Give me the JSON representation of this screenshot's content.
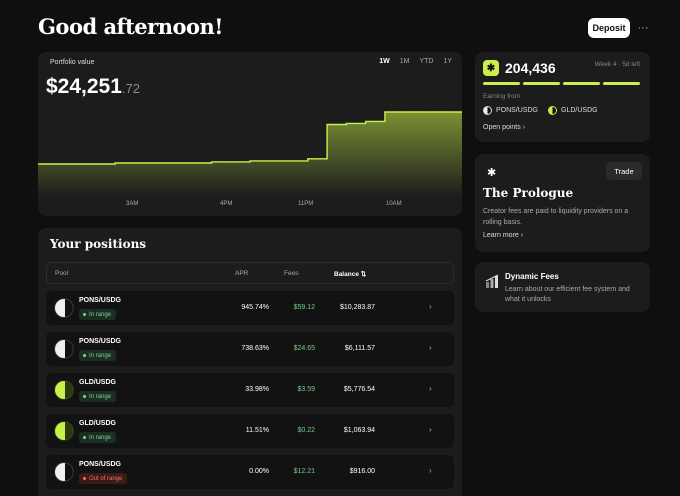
{
  "header": {
    "title": "Good afternoon!",
    "deposit_label": "Deposit",
    "more_label": "···"
  },
  "portfolio": {
    "label": "Portfolio value",
    "value_main": "$24,251",
    "value_cents": ".72",
    "ranges": [
      "1W",
      "1M",
      "YTD",
      "1Y"
    ],
    "active_range": "1W",
    "x_ticks": [
      "3AM",
      "4PM",
      "11PM",
      "10AM"
    ]
  },
  "chart_data": {
    "type": "area",
    "step": true,
    "series": [
      {
        "values": [
          0.5,
          0.5,
          0.5,
          0.5,
          0.51,
          0.51,
          0.51,
          0.51,
          0.51,
          0.52,
          0.52,
          0.53,
          0.53,
          0.53,
          0.55,
          0.88,
          0.89,
          0.91,
          1.0,
          1.0,
          1.0,
          1.0
        ]
      }
    ],
    "accent": "#c8f048",
    "grid": "dots"
  },
  "points": {
    "value": "204,436",
    "week": "Week 4 · 5d left",
    "earning_label": "Earning from",
    "sources": [
      "PONS/USDG",
      "GLD/USDG"
    ],
    "open_label": "Open points ›",
    "accent": "#c8f048",
    "badge_icon": "sparkle-icon"
  },
  "prologue": {
    "trade_label": "Trade",
    "title": "The Prologue",
    "desc": "Creator fees are paid to liquidity providers on a rolling basis.",
    "learn_label": "Learn more ›"
  },
  "dynamic_fees": {
    "title": "Dynamic Fees",
    "desc": "Learn about our efficient fee system and what it unlocks",
    "icon": "bar-chart-icon"
  },
  "positions": {
    "title": "Your positions",
    "columns": {
      "pool": "Pool",
      "apr": "APR",
      "fees": "Fees",
      "balance": "Balance ⇅"
    },
    "rows": [
      {
        "pair": "PONS/USDG",
        "status": "In range",
        "apr": "945.74%",
        "fees": "$59.12",
        "balance": "$10,283.87"
      },
      {
        "pair": "PONS/USDG",
        "status": "In range",
        "apr": "738.63%",
        "fees": "$24.65",
        "balance": "$6,111.57"
      },
      {
        "pair": "GLD/USDG",
        "status": "In range",
        "apr": "33.98%",
        "fees": "$3.59",
        "balance": "$5,776.54"
      },
      {
        "pair": "GLD/USDG",
        "status": "In range",
        "apr": "11.51%",
        "fees": "$0.22",
        "balance": "$1,063.94"
      },
      {
        "pair": "PONS/USDG",
        "status": "Out of range",
        "apr": "0.00%",
        "fees": "$12.21",
        "balance": "$916.00"
      }
    ]
  }
}
